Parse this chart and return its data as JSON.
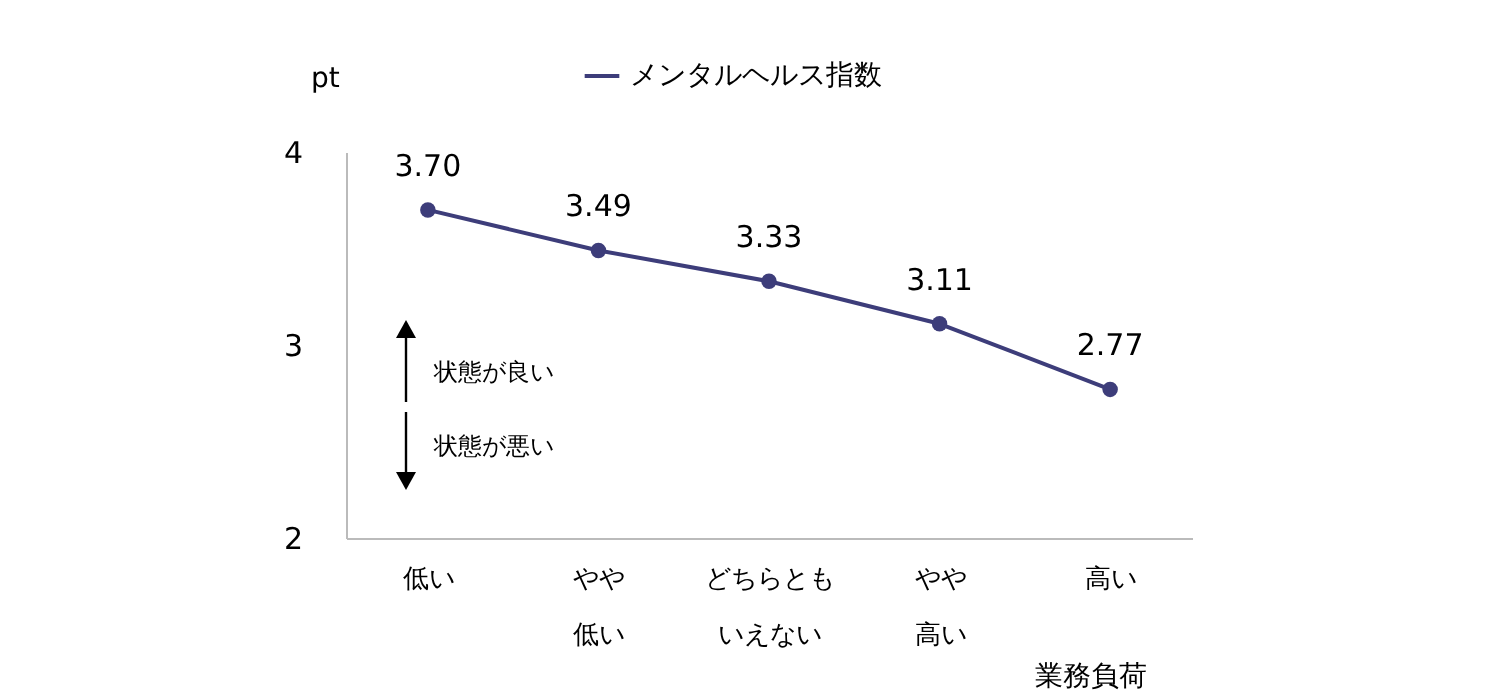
{
  "chart_data": {
    "type": "line",
    "xlabel": "業務負荷",
    "ylabel": "pt",
    "categories": [
      "低い",
      "やや低い",
      "どちらともいえない",
      "やや高い",
      "高い"
    ],
    "series": [
      {
        "name": "メンタルヘルス指数",
        "color": "#3d3d7a",
        "values": [
          3.7,
          3.49,
          3.33,
          3.11,
          2.77
        ],
        "value_labels": [
          "3.70",
          "3.49",
          "3.33",
          "3.11",
          "2.77"
        ]
      }
    ],
    "ylim": [
      2,
      4
    ],
    "yticks": [
      2,
      3,
      4
    ],
    "grid": false,
    "legend": "top",
    "marker": "circle",
    "annotations": [
      "状態が良い",
      "状態が悪い"
    ]
  }
}
